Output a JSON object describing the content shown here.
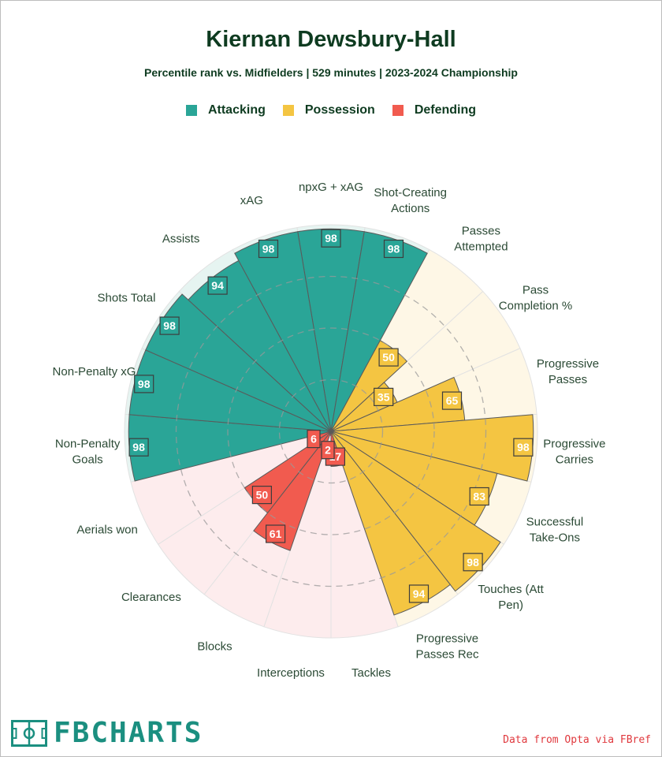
{
  "title": "Kiernan Dewsbury-Hall",
  "subtitle": "Percentile rank vs. Midfielders | 529 minutes | 2023-2024 Championship",
  "legend": [
    {
      "label": "Attacking",
      "color": "#2aa597"
    },
    {
      "label": "Possession",
      "color": "#f4c542"
    },
    {
      "label": "Defending",
      "color": "#f15b4f"
    }
  ],
  "chart_data": {
    "type": "pizza",
    "rlim": [
      0,
      100
    ],
    "gridlines": [
      25,
      50,
      75
    ],
    "slices": [
      {
        "label": "npxG + xAG",
        "value": 98,
        "group": "Attacking"
      },
      {
        "label": "Shot-Creating Actions",
        "value": 98,
        "group": "Attacking"
      },
      {
        "label": "Passes Attempted",
        "value": 50,
        "group": "Possession"
      },
      {
        "label": "Pass Completion %",
        "value": 35,
        "group": "Possession"
      },
      {
        "label": "Progressive Passes",
        "value": 65,
        "group": "Possession"
      },
      {
        "label": "Progressive Carries",
        "value": 98,
        "group": "Possession"
      },
      {
        "label": "Successful Take-Ons",
        "value": 83,
        "group": "Possession"
      },
      {
        "label": "Touches (Att Pen)",
        "value": 98,
        "group": "Possession"
      },
      {
        "label": "Progressive Passes Rec",
        "value": 94,
        "group": "Possession"
      },
      {
        "label": "Tackles",
        "value": 17,
        "group": "Defending"
      },
      {
        "label": "Interceptions",
        "value": 2,
        "group": "Defending"
      },
      {
        "label": "Blocks",
        "value": 61,
        "group": "Defending"
      },
      {
        "label": "Clearances",
        "value": 50,
        "group": "Defending"
      },
      {
        "label": "Aerials won",
        "value": 6,
        "group": "Defending"
      },
      {
        "label": "Non-Penalty Goals",
        "value": 98,
        "group": "Attacking"
      },
      {
        "label": "Non-Penalty xG",
        "value": 98,
        "group": "Attacking"
      },
      {
        "label": "Shots Total",
        "value": 98,
        "group": "Attacking"
      },
      {
        "label": "Assists",
        "value": 94,
        "group": "Attacking"
      },
      {
        "label": "xAG",
        "value": 98,
        "group": "Attacking"
      }
    ],
    "colors": {
      "Attacking": {
        "fill": "#2aa597",
        "bg": "#e6f4f1"
      },
      "Possession": {
        "fill": "#f4c542",
        "bg": "#fef7e6"
      },
      "Defending": {
        "fill": "#f15b4f",
        "bg": "#fdeced"
      }
    }
  },
  "footer": {
    "brand": "FBCHARTS",
    "brand_icon": "pitch-icon",
    "source": "Data from Opta via FBref"
  }
}
